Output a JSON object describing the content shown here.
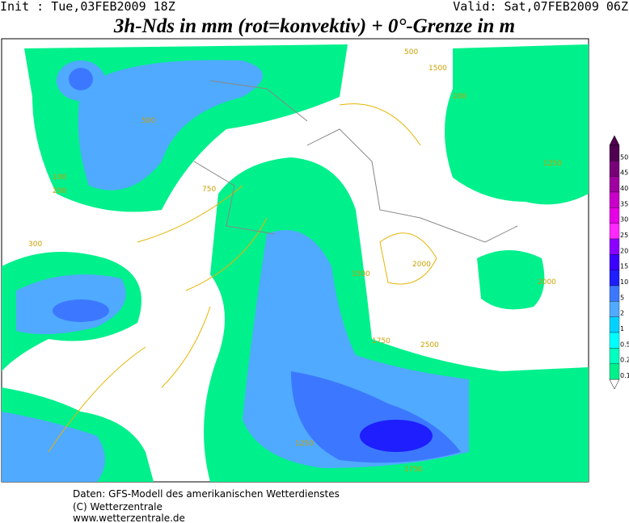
{
  "header": {
    "init": "Init : Tue,03FEB2009 18Z",
    "valid": "Valid: Sat,07FEB2009 06Z",
    "title": "3h-Nds in mm (rot=konvektiv) + 0°-Grenze in m"
  },
  "colorbar": {
    "levels": [
      {
        "label": "50",
        "color": "#500050"
      },
      {
        "label": "45",
        "color": "#780078"
      },
      {
        "label": "40",
        "color": "#a000a0"
      },
      {
        "label": "35",
        "color": "#c800c8"
      },
      {
        "label": "30",
        "color": "#e600e6"
      },
      {
        "label": "25",
        "color": "#ff28ff"
      },
      {
        "label": "20",
        "color": "#8c00ff"
      },
      {
        "label": "15",
        "color": "#3c00ff"
      },
      {
        "label": "10",
        "color": "#1e1eff"
      },
      {
        "label": "5",
        "color": "#3c78ff"
      },
      {
        "label": "2",
        "color": "#50aaff"
      },
      {
        "label": "1",
        "color": "#00d2ff"
      },
      {
        "label": "0.5",
        "color": "#00ffff"
      },
      {
        "label": "0.2",
        "color": "#00ffc0"
      },
      {
        "label": "0.1",
        "color": "#00f08c"
      }
    ]
  },
  "contour_labels": [
    "500",
    "750",
    "100",
    "200",
    "300",
    "500",
    "200",
    "1750",
    "1250",
    "1500",
    "2000",
    "2500",
    "1250",
    "2000",
    "1500",
    "1750"
  ],
  "footer": {
    "lines": [
      "Daten: GFS-Modell des amerikanischen Wetterdienstes",
      "(C) Wetterzentrale",
      "www.wetterzentrale.de"
    ]
  }
}
